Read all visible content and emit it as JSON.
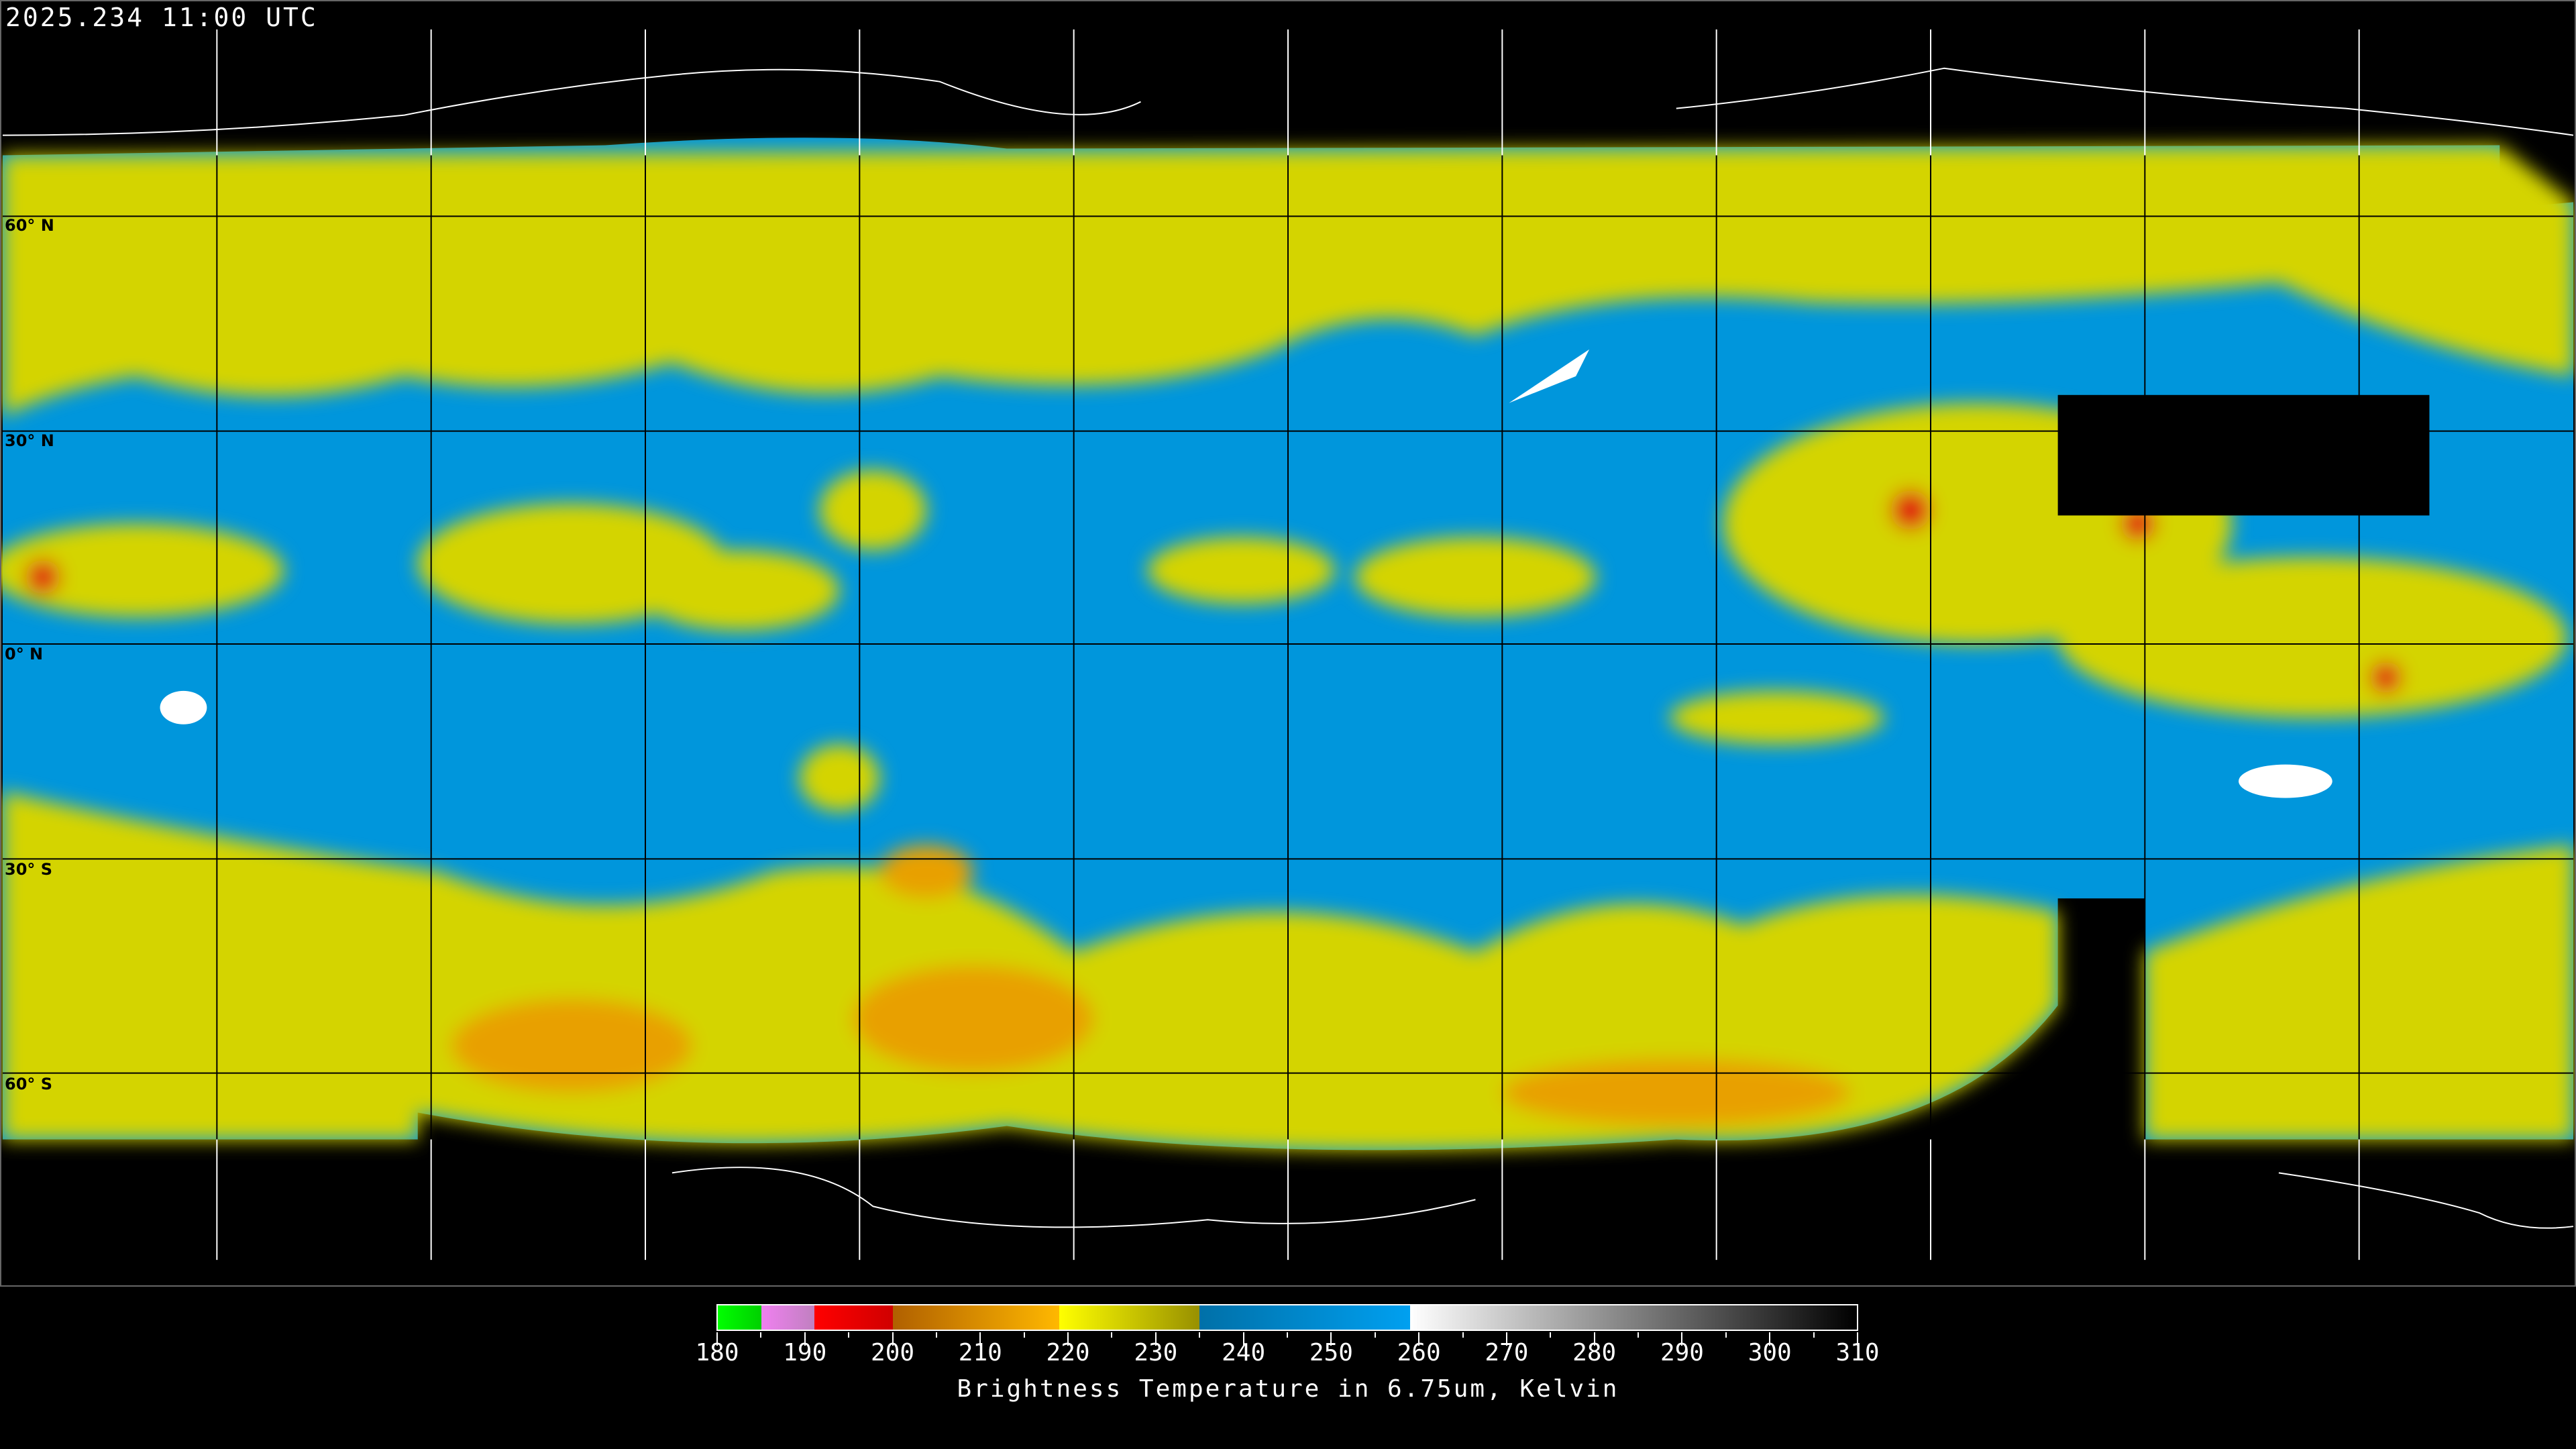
{
  "timestamp": "2025.234 11:00 UTC",
  "map": {
    "latitude_labels": [
      "60° N",
      "30° N",
      "0° N",
      "30° S",
      "60° S"
    ],
    "colors": {
      "background": "#000000",
      "moist_cloud": "#d4d400",
      "dry_air": "#0096dc",
      "cold_top": "#e8a000",
      "deep_convection": "#e01010",
      "coast_on_data": "#000000",
      "coast_on_black": "#ffffff"
    }
  },
  "colorbar": {
    "title": "Brightness Temperature in 6.75um, Kelvin",
    "range": [
      180,
      310
    ],
    "tick_labels": [
      "180",
      "190",
      "200",
      "210",
      "220",
      "230",
      "240",
      "250",
      "260",
      "270",
      "280",
      "290",
      "300",
      "310"
    ],
    "segments": [
      {
        "from": 180,
        "to": 185,
        "colors": [
          "#00ff00",
          "#00d000"
        ]
      },
      {
        "from": 185,
        "to": 191,
        "colors": [
          "#f080f0",
          "#c080c0"
        ]
      },
      {
        "from": 191,
        "to": 200,
        "colors": [
          "#ff0000",
          "#d00000"
        ]
      },
      {
        "from": 200,
        "to": 219,
        "colors": [
          "#b06000",
          "#ffb800"
        ]
      },
      {
        "from": 219,
        "to": 235,
        "colors": [
          "#ffff00",
          "#989000"
        ]
      },
      {
        "from": 235,
        "to": 259,
        "colors": [
          "#0070a8",
          "#00a0f0"
        ]
      },
      {
        "from": 259,
        "to": 310,
        "colors": [
          "#ffffff",
          "#000000"
        ]
      }
    ]
  }
}
